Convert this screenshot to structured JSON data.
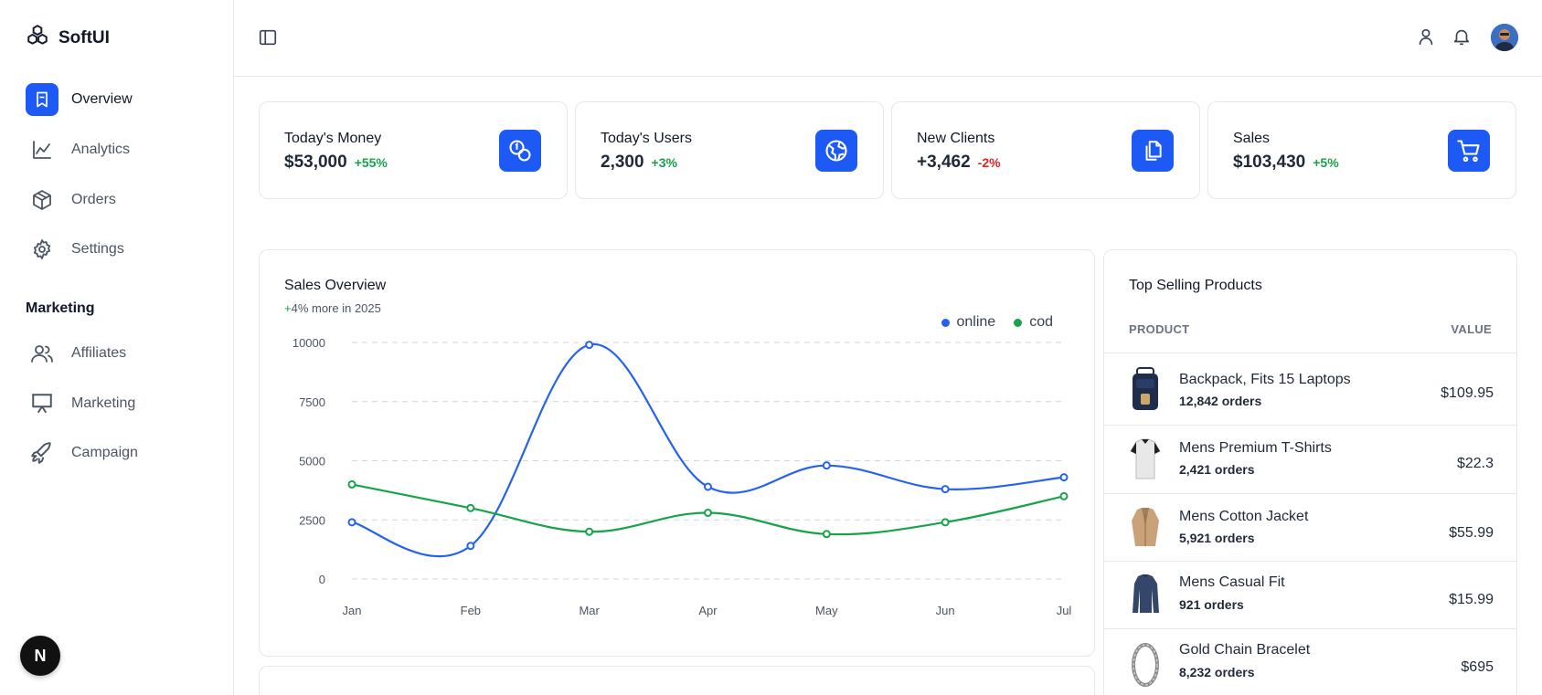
{
  "brand": {
    "name": "SoftUI"
  },
  "sidebar": {
    "items": [
      {
        "label": "Overview",
        "icon": "bookmark-icon",
        "active": true
      },
      {
        "label": "Analytics",
        "icon": "chart-line-icon",
        "active": false
      },
      {
        "label": "Orders",
        "icon": "package-icon",
        "active": false
      },
      {
        "label": "Settings",
        "icon": "gear-icon",
        "active": false
      }
    ],
    "section_title": "Marketing",
    "marketing_items": [
      {
        "label": "Affiliates",
        "icon": "users-icon"
      },
      {
        "label": "Marketing",
        "icon": "presentation-icon"
      },
      {
        "label": "Campaign",
        "icon": "rocket-icon"
      }
    ],
    "badge": "N"
  },
  "header": {
    "icons": [
      "sidebar-toggle-icon",
      "user-icon",
      "bell-icon",
      "avatar"
    ]
  },
  "stats": [
    {
      "title": "Today's Money",
      "value": "$53,000",
      "change": "+55%",
      "trend": "up",
      "icon": "coins-icon"
    },
    {
      "title": "Today's Users",
      "value": "2,300",
      "change": "+3%",
      "trend": "up",
      "icon": "globe-icon"
    },
    {
      "title": "New Clients",
      "value": "+3,462",
      "change": "-2%",
      "trend": "down",
      "icon": "copy-icon"
    },
    {
      "title": "Sales",
      "value": "$103,430",
      "change": "+5%",
      "trend": "up",
      "icon": "cart-icon"
    }
  ],
  "sales_overview": {
    "title": "Sales Overview",
    "subtitle_plus": "+",
    "subtitle_rest": "4% more in 2025"
  },
  "chart_data": {
    "type": "line",
    "title": "Sales Overview",
    "categories": [
      "Jan",
      "Feb",
      "Mar",
      "Apr",
      "May",
      "Jun",
      "Jul"
    ],
    "yticks": [
      0,
      2500,
      5000,
      7500,
      10000
    ],
    "ylim": [
      0,
      10000
    ],
    "grid": true,
    "legend_position": "top-right",
    "series": [
      {
        "name": "online",
        "color": "#2563eb",
        "values": [
          2400,
          1400,
          9900,
          3900,
          4800,
          3800,
          4300
        ]
      },
      {
        "name": "cod",
        "color": "#16a34a",
        "values": [
          4000,
          3000,
          2000,
          2800,
          1900,
          2400,
          3500
        ]
      }
    ]
  },
  "top_products": {
    "title": "Top Selling Products",
    "col_product": "PRODUCT",
    "col_value": "VALUE",
    "items": [
      {
        "name": "Backpack, Fits 15 Laptops",
        "orders": "12,842 orders",
        "value": "$109.95",
        "thumb": "backpack-image"
      },
      {
        "name": "Mens Premium T-Shirts",
        "orders": "2,421 orders",
        "value": "$22.3",
        "thumb": "tshirt-image"
      },
      {
        "name": "Mens Cotton Jacket",
        "orders": "5,921 orders",
        "value": "$55.99",
        "thumb": "jacket-image"
      },
      {
        "name": "Mens Casual Fit",
        "orders": "921 orders",
        "value": "$15.99",
        "thumb": "shirt-image"
      },
      {
        "name": "Gold Chain Bracelet",
        "orders": "8,232 orders",
        "value": "$695",
        "thumb": "bracelet-image"
      }
    ]
  },
  "colors": {
    "accent": "#1d5af5",
    "positive": "#16a34a",
    "negative": "#dc2626"
  }
}
